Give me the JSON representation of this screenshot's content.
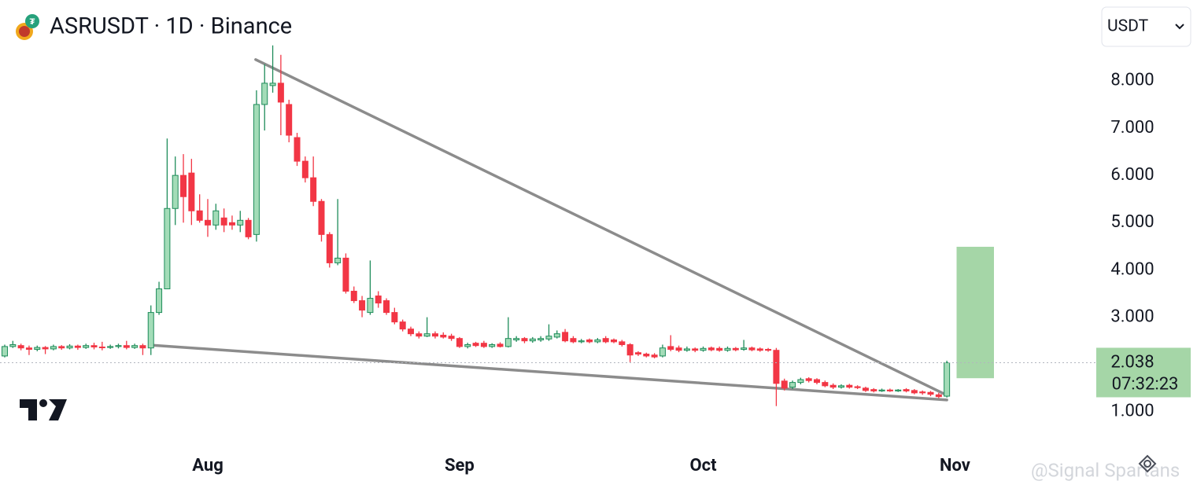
{
  "chart_data": {
    "type": "candlestick",
    "title": "ASRUSDT · 1D · Binance",
    "currency": "USDT",
    "countdown": "07:32:23",
    "watermark": "@Signal Spartans",
    "up_fill": "#a3dcb8",
    "up_stroke": "#1e8c5a",
    "down_color": "#f23645",
    "trendline_color": "#8c8c8c",
    "target_color": "#a5d6a7",
    "ylim": [
      0.4,
      9.71
    ],
    "yticks": [
      {
        "value": 1,
        "label": "1.000"
      },
      {
        "value": 2,
        "label": "2.000"
      },
      {
        "value": 3,
        "label": "3.000"
      },
      {
        "value": 4,
        "label": "4.000"
      },
      {
        "value": 5,
        "label": "5.000"
      },
      {
        "value": 6,
        "label": "6.000"
      },
      {
        "value": 7,
        "label": "7.000"
      },
      {
        "value": 8,
        "label": "8.000"
      }
    ],
    "xlim": [
      -0.58,
      134.3
    ],
    "xticks": [
      {
        "value": 25,
        "label": "Aug"
      },
      {
        "value": 56,
        "label": "Sep"
      },
      {
        "value": 86,
        "label": "Oct"
      },
      {
        "value": 117,
        "label": "Nov"
      }
    ],
    "open": [
      2.18,
      2.38,
      2.4,
      2.35,
      2.32,
      2.36,
      2.33,
      2.38,
      2.35,
      2.39,
      2.36,
      2.4,
      2.37,
      2.36,
      2.38,
      2.4,
      2.36,
      2.4,
      2.35,
      3.1,
      3.6,
      5.3,
      6.0,
      6.05,
      5.25,
      5.05,
      4.95,
      5.1,
      5.0,
      4.95,
      5.05,
      4.75,
      7.5,
      7.9,
      7.95,
      7.5,
      6.8,
      6.3,
      5.95,
      5.45,
      4.75,
      4.15,
      4.25,
      3.55,
      3.35,
      3.1,
      3.45,
      3.35,
      3.1,
      2.9,
      2.75,
      2.65,
      2.6,
      2.65,
      2.62,
      2.6,
      2.55,
      2.38,
      2.45,
      2.45,
      2.38,
      2.43,
      2.38,
      2.52,
      2.55,
      2.5,
      2.52,
      2.54,
      2.58,
      2.68,
      2.55,
      2.48,
      2.52,
      2.48,
      2.55,
      2.52,
      2.48,
      2.42,
      2.25,
      2.22,
      2.2,
      2.18,
      2.38,
      2.35,
      2.3,
      2.33,
      2.3,
      2.35,
      2.34,
      2.3,
      2.34,
      2.32,
      2.35,
      2.33,
      2.32,
      2.3,
      1.65,
      1.52,
      1.62,
      1.7,
      1.68,
      1.62,
      1.56,
      1.52,
      1.56,
      1.53,
      1.5,
      1.47,
      1.44,
      1.46,
      1.44,
      1.47,
      1.45,
      1.42,
      1.41,
      1.36,
      1.33
    ],
    "high": [
      2.42,
      2.5,
      2.44,
      2.4,
      2.4,
      2.39,
      2.42,
      2.41,
      2.43,
      2.42,
      2.44,
      2.46,
      2.48,
      2.42,
      2.44,
      2.5,
      2.44,
      2.44,
      3.25,
      3.75,
      6.78,
      6.4,
      6.45,
      6.35,
      5.6,
      5.5,
      5.4,
      5.3,
      5.15,
      5.25,
      5.1,
      7.8,
      8.35,
      8.75,
      8.55,
      7.6,
      6.9,
      6.4,
      6.4,
      5.5,
      4.8,
      5.5,
      4.35,
      3.65,
      3.45,
      4.2,
      3.55,
      3.4,
      3.2,
      2.95,
      2.8,
      2.7,
      3.0,
      2.7,
      2.68,
      2.65,
      2.58,
      2.46,
      2.48,
      2.5,
      2.45,
      2.47,
      3.0,
      2.6,
      2.58,
      2.58,
      2.6,
      2.85,
      2.72,
      2.75,
      2.6,
      2.54,
      2.55,
      2.56,
      2.6,
      2.55,
      2.52,
      2.45,
      2.28,
      2.25,
      2.24,
      2.42,
      2.62,
      2.4,
      2.38,
      2.36,
      2.38,
      2.38,
      2.38,
      2.38,
      2.37,
      2.52,
      2.38,
      2.36,
      2.35,
      2.35,
      1.7,
      1.66,
      1.72,
      1.73,
      1.71,
      1.66,
      1.6,
      1.58,
      1.59,
      1.56,
      1.53,
      1.5,
      1.49,
      1.49,
      1.48,
      1.5,
      1.48,
      1.45,
      1.44,
      1.4,
      2.08
    ],
    "low": [
      2.15,
      2.35,
      2.3,
      2.2,
      2.28,
      2.22,
      2.3,
      2.31,
      2.32,
      2.31,
      2.33,
      2.32,
      2.3,
      2.33,
      2.34,
      2.32,
      2.33,
      2.2,
      2.2,
      3.05,
      3.6,
      4.95,
      5.0,
      4.95,
      5.0,
      4.7,
      4.85,
      4.8,
      4.85,
      4.8,
      4.65,
      4.6,
      6.95,
      7.75,
      6.85,
      6.7,
      6.2,
      5.85,
      5.35,
      4.6,
      4.05,
      4.1,
      3.5,
      3.3,
      3.0,
      3.05,
      3.2,
      3.05,
      2.85,
      2.7,
      2.6,
      2.55,
      2.58,
      2.55,
      2.55,
      2.5,
      2.35,
      2.34,
      2.37,
      2.35,
      2.35,
      2.36,
      2.36,
      2.48,
      2.45,
      2.46,
      2.48,
      2.5,
      2.55,
      2.47,
      2.45,
      2.45,
      2.45,
      2.45,
      2.45,
      2.45,
      2.38,
      2.05,
      2.18,
      2.15,
      2.13,
      2.15,
      2.28,
      2.26,
      2.27,
      2.26,
      2.27,
      2.28,
      2.27,
      2.27,
      2.28,
      2.29,
      2.28,
      2.27,
      2.27,
      1.12,
      1.45,
      1.48,
      1.58,
      1.62,
      1.58,
      1.52,
      1.48,
      1.49,
      1.49,
      1.48,
      1.42,
      1.41,
      1.42,
      1.42,
      1.42,
      1.41,
      1.37,
      1.36,
      1.33,
      1.29,
      1.3
    ],
    "close": [
      2.38,
      2.42,
      2.35,
      2.32,
      2.36,
      2.33,
      2.38,
      2.35,
      2.39,
      2.36,
      2.4,
      2.37,
      2.36,
      2.38,
      2.4,
      2.36,
      2.4,
      2.35,
      3.1,
      3.6,
      5.3,
      6.0,
      5.55,
      5.25,
      5.05,
      4.95,
      5.25,
      4.95,
      4.95,
      5.05,
      4.7,
      7.5,
      7.95,
      7.95,
      7.55,
      6.85,
      6.3,
      5.95,
      5.45,
      4.75,
      4.15,
      4.25,
      3.55,
      3.35,
      3.15,
      3.4,
      3.3,
      3.1,
      2.9,
      2.75,
      2.65,
      2.6,
      2.65,
      2.6,
      2.58,
      2.55,
      2.38,
      2.42,
      2.4,
      2.38,
      2.42,
      2.38,
      2.55,
      2.55,
      2.5,
      2.54,
      2.55,
      2.6,
      2.65,
      2.5,
      2.48,
      2.5,
      2.48,
      2.52,
      2.48,
      2.48,
      2.42,
      2.2,
      2.22,
      2.18,
      2.16,
      2.35,
      2.32,
      2.3,
      2.33,
      2.3,
      2.34,
      2.31,
      2.3,
      2.34,
      2.31,
      2.35,
      2.31,
      2.3,
      2.3,
      1.6,
      1.5,
      1.62,
      1.68,
      1.66,
      1.62,
      1.55,
      1.52,
      1.55,
      1.52,
      1.51,
      1.45,
      1.44,
      1.46,
      1.44,
      1.46,
      1.44,
      1.4,
      1.4,
      1.37,
      1.32,
      2.038
    ],
    "trendlines": [
      {
        "x": [
          30.9,
          116
        ],
        "y": [
          8.45,
          1.35
        ]
      },
      {
        "x": [
          18,
          116
        ],
        "y": [
          2.41,
          1.25
        ]
      }
    ],
    "target_box": {
      "x": [
        117.2,
        121.8
      ],
      "y": [
        1.71,
        4.49
      ]
    }
  }
}
